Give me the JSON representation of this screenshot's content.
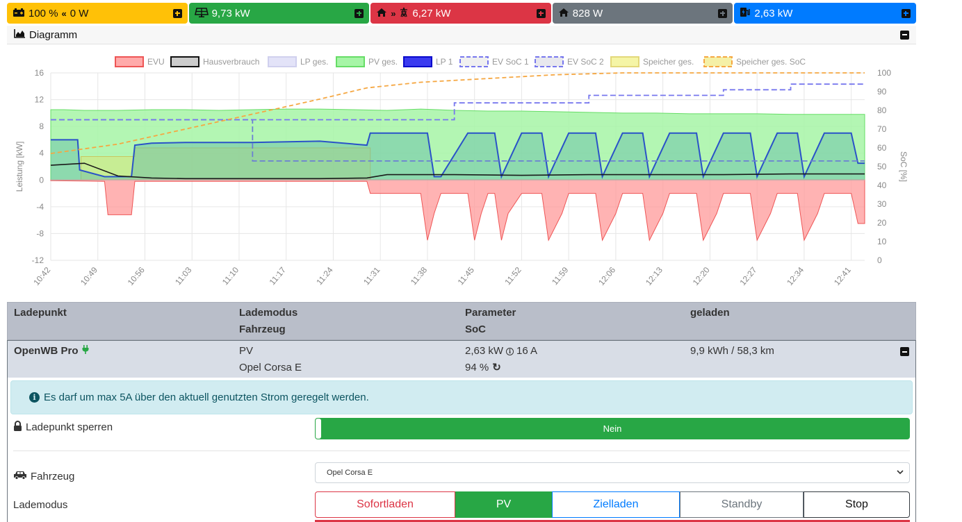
{
  "topbar": [
    {
      "icon": "car-battery-icon",
      "value": "100 %",
      "icon2": "double-chevron-left-icon",
      "value2": "0 W",
      "color": "#ffc107"
    },
    {
      "icon": "solar-panel-icon",
      "value": "9,73 kW",
      "color": "#28a745"
    },
    {
      "icon": "house-icon",
      "icon2": "double-chevron-right-icon",
      "icon3": "power-pylon-icon",
      "value": "6,27 kW",
      "color": "#dc3545"
    },
    {
      "icon": "house-icon",
      "value": "828 W",
      "color": "#6c757d"
    },
    {
      "icon": "charging-station-icon",
      "value": "2,63 kW",
      "color": "#007bff"
    }
  ],
  "diagram": {
    "title": "Diagramm",
    "icon": "chart-area-icon"
  },
  "chart_data": {
    "type": "area",
    "legend": [
      "EVU",
      "Hausverbrauch",
      "LP ges.",
      "PV ges.",
      "LP 1",
      "EV SoC 1",
      "EV SoC 2",
      "Speicher ges.",
      "Speicher ges. SoC"
    ],
    "legend_placement": "top",
    "ylabel": "Leistung [kW]",
    "y2label": "SoC [%]",
    "ylim": [
      -12,
      16
    ],
    "y2lim": [
      0,
      100
    ],
    "yticks": [
      "16",
      "12",
      "8",
      "4",
      "0",
      "-4",
      "-8",
      "-12"
    ],
    "y2ticks": [
      "100",
      "90",
      "80",
      "70",
      "60",
      "50",
      "40",
      "30",
      "20",
      "10",
      "0"
    ],
    "xticks": [
      "10:42",
      "10:49",
      "10:56",
      "11:03",
      "11:10",
      "11:17",
      "11:24",
      "11:31",
      "11:38",
      "11:45",
      "11:52",
      "11:59",
      "12:06",
      "12:13",
      "12:20",
      "12:27",
      "12:34",
      "12:41"
    ],
    "grid": true,
    "colors": {
      "evu": "#ff9999",
      "haus": "#1a1a1a",
      "pv": "#a6f5a6",
      "lp1": "#2a52c8",
      "evsoc1": "#7777ee",
      "speicher_soc": "#f5a742"
    },
    "series": [
      {
        "name": "PV ges.",
        "x": [
          0,
          2,
          5,
          10,
          15,
          20,
          25,
          30,
          35,
          40,
          45,
          50,
          55,
          60,
          65,
          70,
          75,
          80,
          85,
          90,
          95,
          100,
          105,
          110,
          115,
          120,
          121
        ],
        "y": [
          10.5,
          10.5,
          10.4,
          10.4,
          10.5,
          10.5,
          10.4,
          10.5,
          10.6,
          10.6,
          10.5,
          10.4,
          10.6,
          10.4,
          10.3,
          10.3,
          10.2,
          10.1,
          10.0,
          10.0,
          9.9,
          9.9,
          9.9,
          9.8,
          9.8,
          9.8,
          9.8
        ]
      },
      {
        "name": "LP 1",
        "x": [
          0,
          4,
          4.3,
          8,
          12,
          12.5,
          15,
          20,
          30,
          40,
          47,
          47.5,
          56,
          57,
          58,
          62,
          66,
          67,
          70,
          73,
          74,
          77,
          81,
          82,
          85,
          88,
          89,
          92,
          96,
          97,
          100,
          104,
          105,
          108,
          111,
          112,
          115,
          119,
          120,
          121
        ],
        "y": [
          6,
          6,
          1.5,
          0.5,
          0.5,
          5.2,
          5.5,
          5.6,
          5.6,
          5.8,
          5.2,
          7,
          7,
          0.5,
          0.5,
          7,
          7,
          0.5,
          7,
          7,
          0.5,
          7,
          7,
          0.5,
          7,
          7,
          0.5,
          7,
          7,
          0.5,
          7,
          7,
          0.5,
          7,
          7,
          0.5,
          7,
          7,
          2.5,
          2.5
        ]
      },
      {
        "name": "Hausverbrauch",
        "x": [
          0,
          5,
          10,
          15,
          20,
          25,
          30,
          35,
          40,
          47,
          50,
          60,
          70,
          80,
          90,
          100,
          110,
          121
        ],
        "y": [
          2.2,
          2.5,
          0.6,
          0.3,
          0.2,
          0.2,
          0.2,
          0.2,
          0.2,
          0.3,
          0.8,
          0.8,
          0.7,
          0.8,
          0.8,
          0.8,
          0.9,
          0.9
        ]
      },
      {
        "name": "EVU",
        "x": [
          0,
          8,
          8.5,
          12,
          12.5,
          30,
          47,
          47.5,
          55,
          56,
          57,
          58,
          62,
          63,
          64,
          65,
          66,
          67,
          68,
          70,
          73,
          74,
          76,
          77,
          81,
          82,
          84,
          85,
          88,
          89,
          91,
          92,
          96,
          97,
          99,
          100,
          104,
          105,
          107,
          108,
          111,
          112,
          114,
          115,
          119,
          120,
          121
        ],
        "y": [
          -0.1,
          -0.2,
          -5.2,
          -5.2,
          -0.2,
          -0.2,
          -0.2,
          -2,
          -2,
          -9,
          -5,
          -2,
          -2,
          -9,
          -5,
          -2,
          -2,
          -9,
          -5,
          -2,
          -2,
          -9,
          -5,
          -2,
          -2,
          -9,
          -5,
          -2,
          -2,
          -9,
          -5,
          -2,
          -2,
          -9,
          -5,
          -2,
          -2,
          -9,
          -5,
          -2,
          -2,
          -9,
          -5,
          -2,
          -2,
          -6.5,
          -6.5
        ]
      },
      {
        "name": "Speicher ges.",
        "x": [
          4.5,
          12.5,
          12.5,
          47.5,
          47.5
        ],
        "y": [
          3.5,
          3.5,
          4.8,
          4.8,
          0
        ]
      },
      {
        "name": "EV SoC 1",
        "axis": "y2",
        "x": [
          0,
          30,
          30,
          60,
          60,
          121
        ],
        "y": [
          75,
          75,
          53,
          53,
          53,
          53
        ]
      },
      {
        "name": "EV SoC 2",
        "axis": "y2",
        "x": [
          0,
          60,
          60,
          80,
          80,
          100,
          100,
          110,
          110,
          121
        ],
        "y": [
          75,
          75,
          84,
          84,
          88,
          88,
          91,
          91,
          94,
          94
        ]
      },
      {
        "name": "Speicher ges. SoC",
        "axis": "y2",
        "x": [
          0,
          10,
          20,
          30,
          40,
          47,
          55,
          65,
          75,
          85,
          95,
          121
        ],
        "y": [
          57,
          62,
          70,
          78,
          86,
          92,
          95,
          97,
          99,
          100,
          100,
          100
        ]
      }
    ]
  },
  "table": {
    "col_ladepunkt": "Ladepunkt",
    "col_lademodus": "Lademodus",
    "col_fahrzeug": "Fahrzeug",
    "col_parameter": "Parameter",
    "col_soc": "SoC",
    "col_geladen": "geladen"
  },
  "lp": {
    "name": "OpenWB Pro",
    "plug_icon": "plug-icon",
    "mode": "PV",
    "vehicle": "Opel Corsa E",
    "power": "2,63 kW",
    "current": "16 A",
    "soc": "94 %",
    "charged": "9,9 kWh / 58,3 km"
  },
  "alert": {
    "text": "Es darf um max 5A über den aktuell genutzten Strom geregelt werden."
  },
  "lock": {
    "label": "Ladepunkt sperren",
    "value": "Nein"
  },
  "vehicle_select": {
    "label": "Fahrzeug",
    "value": "Opel Corsa E"
  },
  "lademodus": {
    "label": "Lademodus",
    "modes": [
      "Sofortladen",
      "PV",
      "Zielladen",
      "Standby",
      "Stop"
    ],
    "active": "PV"
  }
}
